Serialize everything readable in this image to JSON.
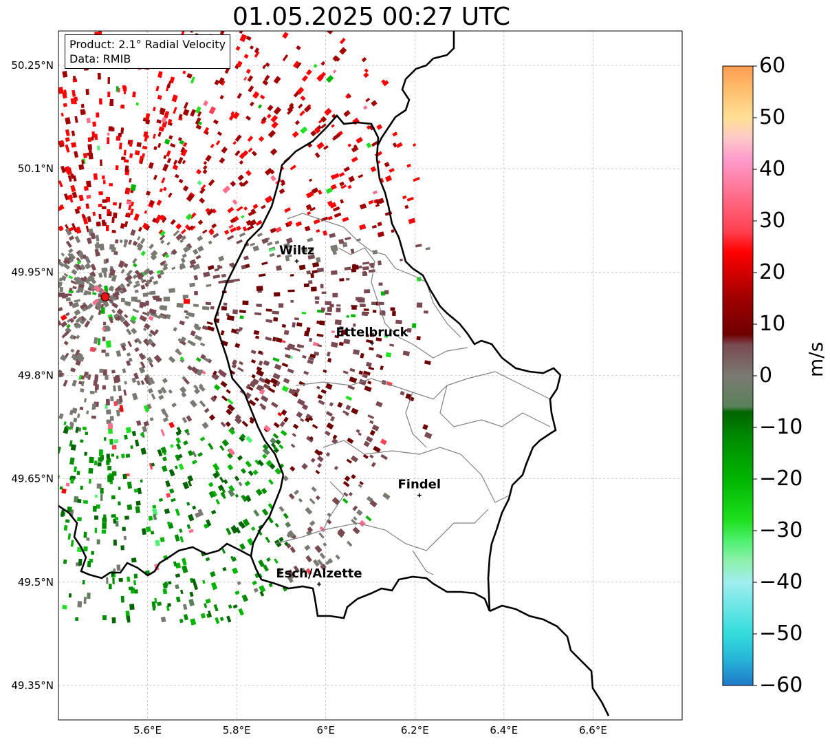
{
  "title": "01.05.2025 00:27 UTC",
  "info": {
    "product_line": "Product: 2.1° Radial Velocity",
    "data_line": "Data: RMIB"
  },
  "map": {
    "lat_labels": [
      "50.25°N",
      "50.1°N",
      "49.95°N",
      "49.8°N",
      "49.65°N",
      "49.5°N",
      "49.35°N"
    ],
    "lon_labels": [
      "5.6°E",
      "5.8°E",
      "6°E",
      "6.2°E",
      "6.4°E",
      "6.6°E"
    ],
    "lat_values": [
      50.25,
      50.1,
      49.95,
      49.8,
      49.65,
      49.5,
      49.35
    ],
    "lon_values": [
      5.6,
      5.8,
      6.0,
      6.2,
      6.4,
      6.6
    ],
    "extent": {
      "lon_min": 5.4,
      "lon_max": 6.8,
      "lat_min": 49.3,
      "lat_max": 50.3
    },
    "gridlines": true,
    "radar_site": {
      "lon": 5.505,
      "lat": 49.914
    },
    "cities": [
      {
        "name": "Wiltz",
        "lon": 5.935,
        "lat": 49.966
      },
      {
        "name": "Ettelbruck",
        "lon": 6.104,
        "lat": 49.847
      },
      {
        "name": "Findel",
        "lon": 6.21,
        "lat": 49.626
      },
      {
        "name": "Esch/Alzette",
        "lon": 5.985,
        "lat": 49.497
      }
    ]
  },
  "colorbar": {
    "label": "m/s",
    "ticks": [
      "60",
      "50",
      "40",
      "30",
      "20",
      "10",
      "0",
      "−10",
      "−20",
      "−30",
      "−40",
      "−50",
      "−60"
    ],
    "tick_values": [
      60,
      50,
      40,
      30,
      20,
      10,
      0,
      -10,
      -20,
      -30,
      -40,
      -50,
      -60
    ],
    "range": [
      -60,
      60
    ],
    "stops": [
      {
        "v": -60,
        "color": "#1f78c8"
      },
      {
        "v": -55,
        "color": "#26b4d8"
      },
      {
        "v": -50,
        "color": "#33dcdc"
      },
      {
        "v": -40,
        "color": "#a0eeee"
      },
      {
        "v": -36,
        "color": "#90f0b0"
      },
      {
        "v": -32,
        "color": "#50f070"
      },
      {
        "v": -28,
        "color": "#1ee01e"
      },
      {
        "v": -20,
        "color": "#00b400"
      },
      {
        "v": -12,
        "color": "#008c00"
      },
      {
        "v": -7,
        "color": "#006400"
      },
      {
        "v": -6,
        "color": "#5a825a"
      },
      {
        "v": 0,
        "color": "#7a7a72"
      },
      {
        "v": 6,
        "color": "#7a4a52"
      },
      {
        "v": 8,
        "color": "#6e0000"
      },
      {
        "v": 15,
        "color": "#a00000"
      },
      {
        "v": 24,
        "color": "#ff0000"
      },
      {
        "v": 28,
        "color": "#ff4050"
      },
      {
        "v": 35,
        "color": "#ff6e8c"
      },
      {
        "v": 42,
        "color": "#ff9ccc"
      },
      {
        "v": 46,
        "color": "#ffc8c8"
      },
      {
        "v": 50,
        "color": "#ffe096"
      },
      {
        "v": 55,
        "color": "#ffc070"
      },
      {
        "v": 60,
        "color": "#ff9c50"
      }
    ]
  }
}
